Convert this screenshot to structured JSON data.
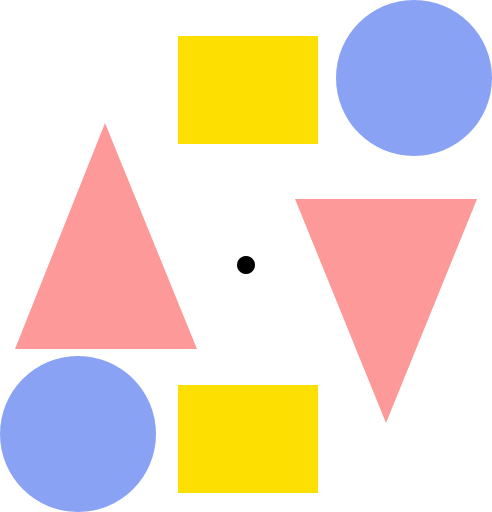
{
  "canvas": {
    "background": "#ffffff"
  },
  "colors": {
    "rectangle": "#FDE001",
    "circle": "#8AA2F4",
    "triangle": "#FD9A99",
    "center_dot": "#000000"
  },
  "shapes": [
    {
      "id": "rect-top",
      "kind": "rectangle"
    },
    {
      "id": "circle-top-right",
      "kind": "circle"
    },
    {
      "id": "triangle-left-up",
      "kind": "triangle",
      "orientation": "up"
    },
    {
      "id": "center-dot",
      "kind": "dot"
    },
    {
      "id": "triangle-right-down",
      "kind": "triangle",
      "orientation": "down"
    },
    {
      "id": "circle-bottom-left",
      "kind": "circle"
    },
    {
      "id": "rect-bottom",
      "kind": "rectangle"
    }
  ]
}
